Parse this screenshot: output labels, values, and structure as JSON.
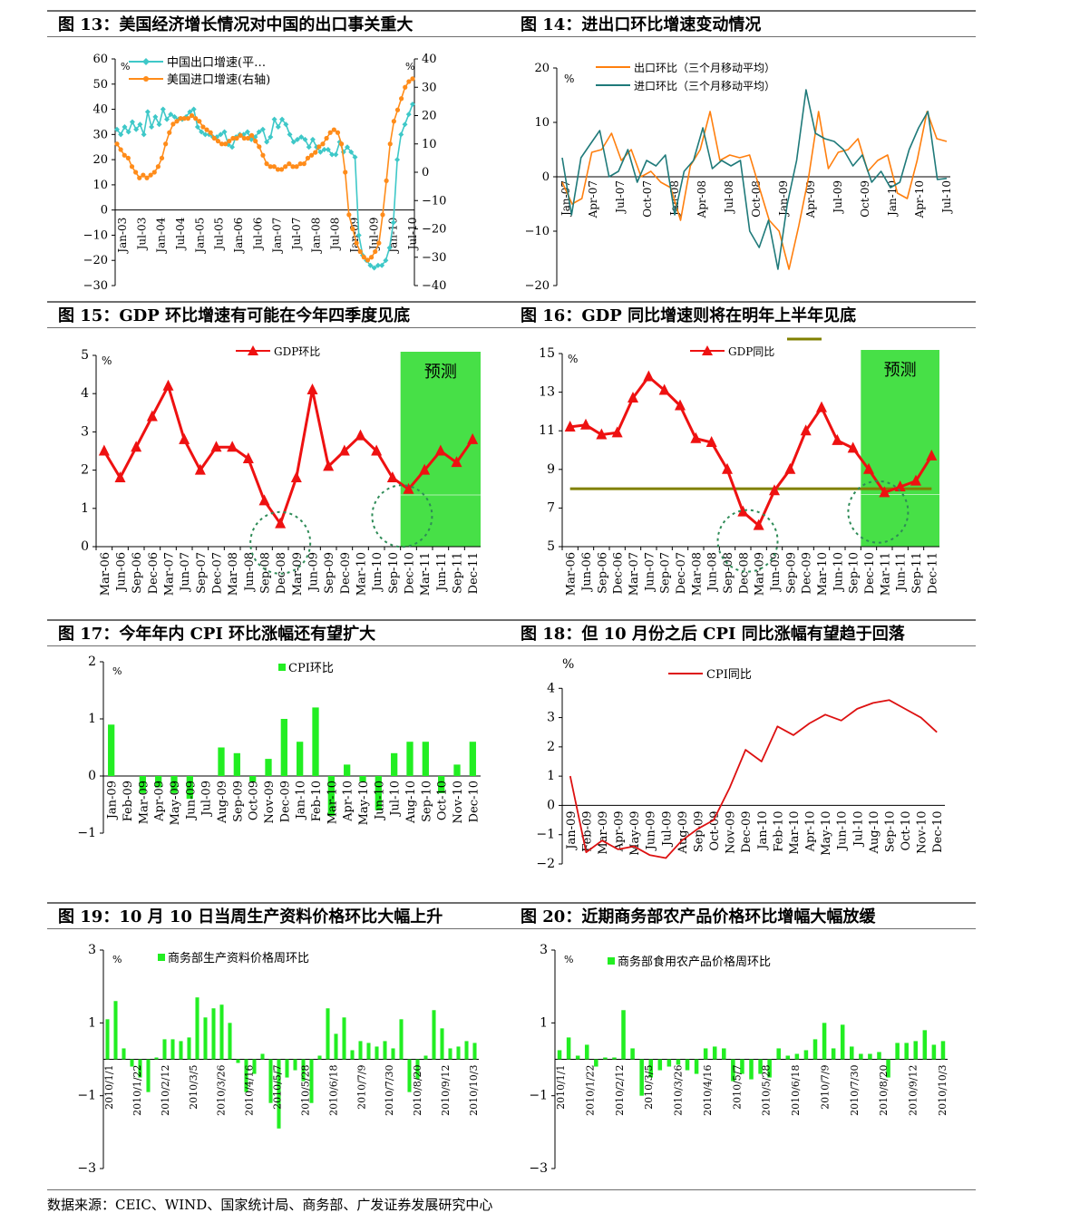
{
  "source_note": "数据来源：CEIC、WIND、国家统计局、商务部、广发证券发展研究中心",
  "chart_data": [
    {
      "id": "fig13",
      "type": "line",
      "title": "图 13：美国经济增长情况对中国的出口事关重大",
      "x_labels": [
        "Jan-03",
        "Jul-03",
        "Jan-04",
        "Jul-04",
        "Jan-05",
        "Jul-05",
        "Jan-06",
        "Jul-06",
        "Jan-07",
        "Jul-07",
        "Jan-08",
        "Jul-08",
        "Jan-09",
        "Jul-09",
        "Jan-10",
        "Jul-10"
      ],
      "ylim_left": [
        -30,
        60
      ],
      "yticks_left": [
        -30,
        -20,
        -10,
        0,
        10,
        20,
        30,
        40,
        50,
        60
      ],
      "ylim_right": [
        -40,
        40
      ],
      "yticks_right": [
        -40,
        -30,
        -20,
        -10,
        0,
        10,
        20,
        30,
        40
      ],
      "left_unit": "%",
      "right_unit": "%",
      "series": [
        {
          "name": "中国出口增速(平…",
          "axis": "left",
          "color": "#3ec8c8",
          "values": [
            32,
            30,
            33,
            31,
            35,
            32,
            34,
            30,
            39,
            33,
            37,
            34,
            40,
            36,
            38,
            37,
            36,
            36,
            37,
            39,
            40,
            33,
            31,
            30,
            30,
            29,
            29,
            30,
            31,
            26,
            25,
            29,
            30,
            30,
            31,
            28,
            29,
            31,
            32,
            27,
            29,
            36,
            33,
            36,
            34,
            30,
            27,
            28,
            29,
            28,
            25,
            28,
            25,
            23,
            24,
            24,
            22,
            22,
            27,
            23,
            25,
            23,
            21,
            -10,
            -18,
            -20,
            -22,
            -23,
            -22,
            -22,
            -20,
            -15,
            -5,
            20,
            30,
            34,
            38,
            42
          ]
        },
        {
          "name": "美国进口增速(右轴)",
          "axis": "right",
          "color": "#ff8c1a",
          "values": [
            10,
            8,
            6,
            5,
            2,
            0,
            -2,
            -1,
            -2,
            -1,
            0,
            2,
            5,
            10,
            14,
            17,
            18,
            19,
            19,
            19,
            20,
            19,
            18,
            16,
            15,
            14,
            12,
            11,
            10,
            10,
            11,
            12,
            12,
            13,
            12,
            12,
            13,
            11,
            9,
            6,
            3,
            2,
            2,
            1,
            1,
            2,
            3,
            2,
            2,
            3,
            3,
            5,
            6,
            7,
            9,
            10,
            12,
            14,
            15,
            14,
            10,
            0,
            -15,
            -20,
            -25,
            -28,
            -30,
            -31,
            -30,
            -28,
            -25,
            -15,
            -3,
            10,
            18,
            22,
            26,
            30,
            32,
            33
          ]
        }
      ]
    },
    {
      "id": "fig14",
      "type": "line",
      "title": "图 14：进出口环比增速变动情况",
      "x_labels": [
        "Jan-07",
        "Apr-07",
        "Jul-07",
        "Oct-07",
        "Jan-08",
        "Apr-08",
        "Jul-08",
        "Oct-08",
        "Jan-09",
        "Apr-09",
        "Jul-09",
        "Oct-09",
        "Jan-10",
        "Apr-10",
        "Jul-10"
      ],
      "ylim": [
        -20,
        20
      ],
      "yticks": [
        -20,
        -10,
        0,
        10,
        20
      ],
      "unit": "%",
      "series": [
        {
          "name": "出口环比（三个月移动平均）",
          "color": "#ff7f0e",
          "values": [
            -1,
            -5,
            -4,
            4.5,
            5,
            8,
            3,
            5,
            0,
            1,
            -1,
            -2,
            -8,
            2,
            5,
            12,
            3,
            4,
            3.5,
            4,
            -2,
            -8,
            -10,
            -17,
            -9,
            0,
            12,
            1.5,
            4.5,
            5,
            7,
            1,
            3,
            4,
            -3,
            -4,
            3,
            12,
            7,
            6.5
          ]
        },
        {
          "name": "进口环比（三个月移动平均）",
          "color": "#1f7a7a",
          "values": [
            3.5,
            -7,
            3.5,
            6,
            8.5,
            0,
            1,
            5,
            -1,
            3,
            2,
            4,
            -7,
            1,
            3,
            9,
            1.5,
            3,
            2,
            3,
            -10,
            -13,
            -8,
            -17,
            -5,
            3,
            16,
            8,
            7,
            6.5,
            5,
            2,
            4,
            -1,
            1,
            -2,
            -1,
            5,
            9,
            12,
            -0.5,
            -0.3
          ]
        }
      ]
    },
    {
      "id": "fig15",
      "type": "line",
      "title": "图 15：GDP 环比增速有可能在今年四季度见底",
      "x_labels": [
        "Mar-06",
        "Jun-06",
        "Sep-06",
        "Dec-06",
        "Mar-07",
        "Jun-07",
        "Sep-07",
        "Dec-07",
        "Mar-08",
        "Jun-08",
        "Sep-08",
        "Dec-08",
        "Mar-09",
        "Jun-09",
        "Sep-09",
        "Dec-09",
        "Mar-10",
        "Jun-10",
        "Sep-10",
        "Dec-10",
        "Mar-11",
        "Jun-11",
        "Sep-11",
        "Dec-11"
      ],
      "ylim": [
        0,
        5
      ],
      "yticks": [
        0,
        1,
        2,
        3,
        4,
        5
      ],
      "unit": "%",
      "forecast_label": "预测",
      "forecast_start": 19,
      "series": [
        {
          "name": "GDP环比",
          "color": "#ee1111",
          "values": [
            2.5,
            1.8,
            2.6,
            3.4,
            4.2,
            2.8,
            2.0,
            2.6,
            2.6,
            2.3,
            1.2,
            0.6,
            1.8,
            4.1,
            2.1,
            2.5,
            2.9,
            2.5,
            1.8,
            1.5,
            2.0,
            2.5,
            2.2,
            2.8
          ]
        }
      ]
    },
    {
      "id": "fig16",
      "type": "line",
      "title": "图 16：GDP 同比增速则将在明年上半年见底",
      "x_labels": [
        "Mar-06",
        "Jun-06",
        "Sep-06",
        "Dec-06",
        "Mar-07",
        "Jun-07",
        "Sep-07",
        "Dec-07",
        "Mar-08",
        "Jun-08",
        "Sep-08",
        "Dec-08",
        "Mar-09",
        "Jun-09",
        "Sep-09",
        "Dec-09",
        "Mar-10",
        "Jun-10",
        "Sep-10",
        "Dec-10",
        "Mar-11",
        "Jun-11",
        "Sep-11",
        "Dec-11"
      ],
      "ylim": [
        5,
        15
      ],
      "yticks": [
        5,
        7,
        9,
        11,
        13,
        15
      ],
      "unit": "%",
      "forecast_label": "预测",
      "forecast_start": 19,
      "reference_level": 8,
      "reference_color": "#808000",
      "series": [
        {
          "name": "GDP同比",
          "color": "#ee1111",
          "values": [
            11.2,
            11.3,
            10.8,
            10.9,
            12.7,
            13.8,
            13.1,
            12.3,
            10.6,
            10.4,
            9.0,
            6.8,
            6.1,
            7.9,
            9.0,
            11.0,
            12.2,
            10.5,
            10.1,
            9.0,
            7.8,
            8.1,
            8.4,
            9.7
          ]
        }
      ]
    },
    {
      "id": "fig17",
      "type": "bar",
      "title": "图 17：今年年内 CPI 环比涨幅还有望扩大",
      "categories": [
        "Jan-09",
        "Feb-09",
        "Mar-09",
        "Apr-09",
        "May-09",
        "Jun-09",
        "Jul-09",
        "Aug-09",
        "Sep-09",
        "Oct-09",
        "Nov-09",
        "Dec-09",
        "Jan-10",
        "Feb-10",
        "Mar-10",
        "Apr-10",
        "May-10",
        "Jun-10",
        "Jul-10",
        "Aug-10",
        "Sep-10",
        "Oct-10",
        "Nov-10",
        "Dec-10"
      ],
      "ylim": [
        -1,
        2
      ],
      "yticks": [
        -1,
        0,
        1,
        2
      ],
      "unit": "%",
      "series": [
        {
          "name": "CPI环比",
          "color": "#22ee22",
          "values": [
            0.9,
            0,
            -0.3,
            -0.2,
            -0.3,
            -0.4,
            0,
            0.5,
            0.4,
            -0.1,
            0.3,
            1.0,
            0.6,
            1.2,
            -0.7,
            0.2,
            -0.1,
            -0.6,
            0.4,
            0.6,
            0.6,
            -0.3,
            0.2,
            0.6
          ]
        }
      ]
    },
    {
      "id": "fig18",
      "type": "line",
      "title": "图 18：但 10 月份之后 CPI 同比涨幅有望趋于回落",
      "x_labels": [
        "Jan-09",
        "Feb-09",
        "Mar-09",
        "Apr-09",
        "May-09",
        "Jun-09",
        "Jul-09",
        "Aug-09",
        "Sep-09",
        "Oct-09",
        "Nov-09",
        "Dec-09",
        "Jan-10",
        "Feb-10",
        "Mar-10",
        "Apr-10",
        "May-10",
        "Jun-10",
        "Jul-10",
        "Aug-10",
        "Sep-10",
        "Oct-10",
        "Nov-10",
        "Dec-10"
      ],
      "ylim": [
        -2,
        5
      ],
      "yticks": [
        -2,
        -1,
        0,
        1,
        2,
        3,
        4
      ],
      "unit": "%",
      "series": [
        {
          "name": "CPI同比",
          "color": "#dd1111",
          "values": [
            1.0,
            -1.6,
            -1.2,
            -1.5,
            -1.4,
            -1.7,
            -1.8,
            -1.2,
            -0.8,
            -0.5,
            0.6,
            1.9,
            1.5,
            2.7,
            2.4,
            2.8,
            3.1,
            2.9,
            3.3,
            3.5,
            3.6,
            3.3,
            3.0,
            2.5
          ]
        }
      ]
    },
    {
      "id": "fig19",
      "type": "bar",
      "title": "图 19：10 月 10 日当周生产资料价格环比大幅上升",
      "tick_labels": [
        "2010/1/1",
        "2010/1/22",
        "2010/2/12",
        "2010/3/5",
        "2010/3/26",
        "2010/4/16",
        "2010/5/7",
        "2010/5/28",
        "2010/6/18",
        "2010/7/9",
        "2010/7/30",
        "2010/8/20",
        "2010/9/12",
        "2010/10/3"
      ],
      "ylim": [
        -3,
        3
      ],
      "yticks": [
        -3,
        -1,
        1,
        3
      ],
      "unit": "%",
      "series": [
        {
          "name": "商务部生产资料价格周环比",
          "color": "#22ee22",
          "values": [
            1.1,
            1.6,
            0.3,
            -0.2,
            -0.5,
            -0.9,
            0.05,
            0.55,
            0.55,
            0.5,
            0.6,
            1.7,
            1.15,
            1.4,
            1.5,
            1.0,
            -0.1,
            -0.9,
            -0.4,
            0.15,
            -1.2,
            -1.9,
            -0.5,
            -0.3,
            -0.6,
            -1.2,
            0.1,
            1.4,
            0.7,
            1.15,
            0.25,
            0.5,
            0.45,
            0.35,
            0.5,
            0.3,
            1.1,
            -0.9,
            -0.55,
            0.1,
            1.35,
            0.85,
            0.3,
            0.35,
            0.5,
            0.45
          ]
        }
      ]
    },
    {
      "id": "fig20",
      "type": "bar",
      "title": "图 20：近期商务部农产品价格环比增幅大幅放缓",
      "tick_labels": [
        "2010/1/1",
        "2010/1/22",
        "2010/2/12",
        "2010/3/5",
        "2010/3/26",
        "2010/4/16",
        "2010/5/7",
        "2010/5/28",
        "2010/6/18",
        "2010/7/9",
        "2010/7/30",
        "2010/8/20",
        "2010/9/12",
        "2010/10/3"
      ],
      "ylim": [
        -3,
        3
      ],
      "yticks": [
        -3,
        -1,
        1,
        3
      ],
      "unit": "%",
      "series": [
        {
          "name": "商务部食用农产品价格周环比",
          "color": "#22ee22",
          "values": [
            0.25,
            0.6,
            0.1,
            0.4,
            -0.2,
            0.05,
            0.05,
            1.35,
            0.3,
            -1.0,
            -0.5,
            -0.3,
            -0.2,
            -0.15,
            -0.3,
            -0.4,
            0.3,
            0.35,
            0.3,
            -0.6,
            -0.4,
            -0.55,
            -0.4,
            -0.5,
            0.3,
            0.1,
            0.15,
            0.25,
            0.55,
            1.0,
            0.3,
            0.95,
            0.35,
            0.15,
            0.15,
            0.2,
            -0.5,
            0.45,
            0.45,
            0.5,
            0.8,
            0.4,
            0.5
          ]
        }
      ]
    }
  ]
}
